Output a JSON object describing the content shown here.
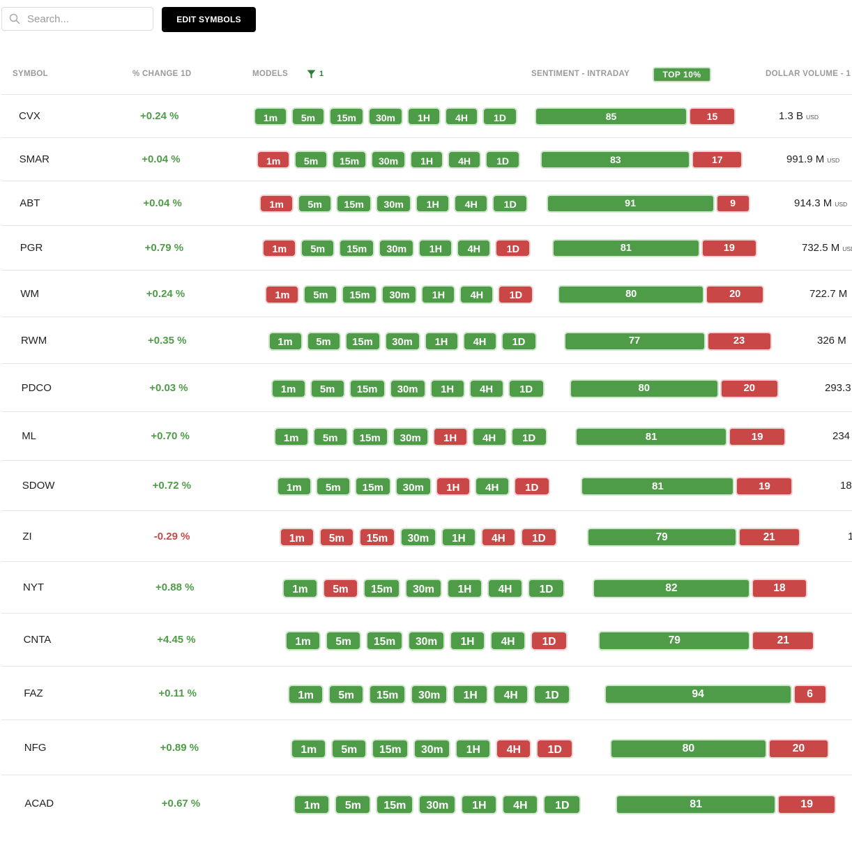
{
  "toolbar": {
    "search_placeholder": "Search...",
    "edit_symbols_label": "EDIT SYMBOLS"
  },
  "header": {
    "symbol": "SYMBOL",
    "change": "% CHANGE 1D",
    "models": "MODELS",
    "filter_count": "1",
    "sentiment": "SENTIMENT - INTRADAY",
    "top_pill": "TOP 10%",
    "dollar_volume": "DOLLAR VOLUME - 1"
  },
  "timeframes": [
    "1m",
    "5m",
    "15m",
    "30m",
    "1H",
    "4H",
    "1D"
  ],
  "colors": {
    "green": "#4e9c48",
    "red": "#c94747",
    "text_green": "#4e9c48",
    "text_red": "#c94747"
  },
  "rows": [
    {
      "symbol": "CVX",
      "change": "+0.24 %",
      "dir": "up",
      "models": [
        "g",
        "g",
        "g",
        "g",
        "g",
        "g",
        "g"
      ],
      "pos": 85,
      "neg": 15,
      "volume": "1.3 B",
      "unit": "USD"
    },
    {
      "symbol": "SMAR",
      "change": "+0.04 %",
      "dir": "up",
      "models": [
        "r",
        "g",
        "g",
        "g",
        "g",
        "g",
        "g"
      ],
      "pos": 83,
      "neg": 17,
      "volume": "991.9 M",
      "unit": "USD"
    },
    {
      "symbol": "ABT",
      "change": "+0.04 %",
      "dir": "up",
      "models": [
        "r",
        "g",
        "g",
        "g",
        "g",
        "g",
        "g"
      ],
      "pos": 91,
      "neg": 9,
      "volume": "914.3 M",
      "unit": "USD"
    },
    {
      "symbol": "PGR",
      "change": "+0.79 %",
      "dir": "up",
      "models": [
        "r",
        "g",
        "g",
        "g",
        "g",
        "g",
        "r"
      ],
      "pos": 81,
      "neg": 19,
      "volume": "732.5 M",
      "unit": "USD"
    },
    {
      "symbol": "WM",
      "change": "+0.24 %",
      "dir": "up",
      "models": [
        "r",
        "g",
        "g",
        "g",
        "g",
        "g",
        "r"
      ],
      "pos": 80,
      "neg": 20,
      "volume": "722.7 M",
      "unit": ""
    },
    {
      "symbol": "RWM",
      "change": "+0.35 %",
      "dir": "up",
      "models": [
        "g",
        "g",
        "g",
        "g",
        "g",
        "g",
        "g"
      ],
      "pos": 77,
      "neg": 23,
      "volume": "326 M",
      "unit": ""
    },
    {
      "symbol": "PDCO",
      "change": "+0.03 %",
      "dir": "up",
      "models": [
        "g",
        "g",
        "g",
        "g",
        "g",
        "g",
        "g"
      ],
      "pos": 80,
      "neg": 20,
      "volume": "293.3",
      "unit": ""
    },
    {
      "symbol": "ML",
      "change": "+0.70 %",
      "dir": "up",
      "models": [
        "g",
        "g",
        "g",
        "g",
        "r",
        "g",
        "g"
      ],
      "pos": 81,
      "neg": 19,
      "volume": "234",
      "unit": ""
    },
    {
      "symbol": "SDOW",
      "change": "+0.72 %",
      "dir": "up",
      "models": [
        "g",
        "g",
        "g",
        "g",
        "r",
        "g",
        "r"
      ],
      "pos": 81,
      "neg": 19,
      "volume": "18",
      "unit": ""
    },
    {
      "symbol": "ZI",
      "change": "-0.29 %",
      "dir": "down",
      "models": [
        "r",
        "r",
        "r",
        "g",
        "g",
        "r",
        "r"
      ],
      "pos": 79,
      "neg": 21,
      "volume": "1",
      "unit": ""
    },
    {
      "symbol": "NYT",
      "change": "+0.88 %",
      "dir": "up",
      "models": [
        "g",
        "r",
        "g",
        "g",
        "g",
        "g",
        "g"
      ],
      "pos": 82,
      "neg": 18,
      "volume": "",
      "unit": ""
    },
    {
      "symbol": "CNTA",
      "change": "+4.45 %",
      "dir": "up",
      "models": [
        "g",
        "g",
        "g",
        "g",
        "g",
        "g",
        "r"
      ],
      "pos": 79,
      "neg": 21,
      "volume": "",
      "unit": ""
    },
    {
      "symbol": "FAZ",
      "change": "+0.11 %",
      "dir": "up",
      "models": [
        "g",
        "g",
        "g",
        "g",
        "g",
        "g",
        "g"
      ],
      "pos": 94,
      "neg": 6,
      "volume": "",
      "unit": ""
    },
    {
      "symbol": "NFG",
      "change": "+0.89 %",
      "dir": "up",
      "models": [
        "g",
        "g",
        "g",
        "g",
        "g",
        "r",
        "r"
      ],
      "pos": 80,
      "neg": 20,
      "volume": "",
      "unit": ""
    },
    {
      "symbol": "ACAD",
      "change": "+0.67 %",
      "dir": "up",
      "models": [
        "g",
        "g",
        "g",
        "g",
        "g",
        "g",
        "g"
      ],
      "pos": 81,
      "neg": 19,
      "volume": "",
      "unit": ""
    }
  ]
}
